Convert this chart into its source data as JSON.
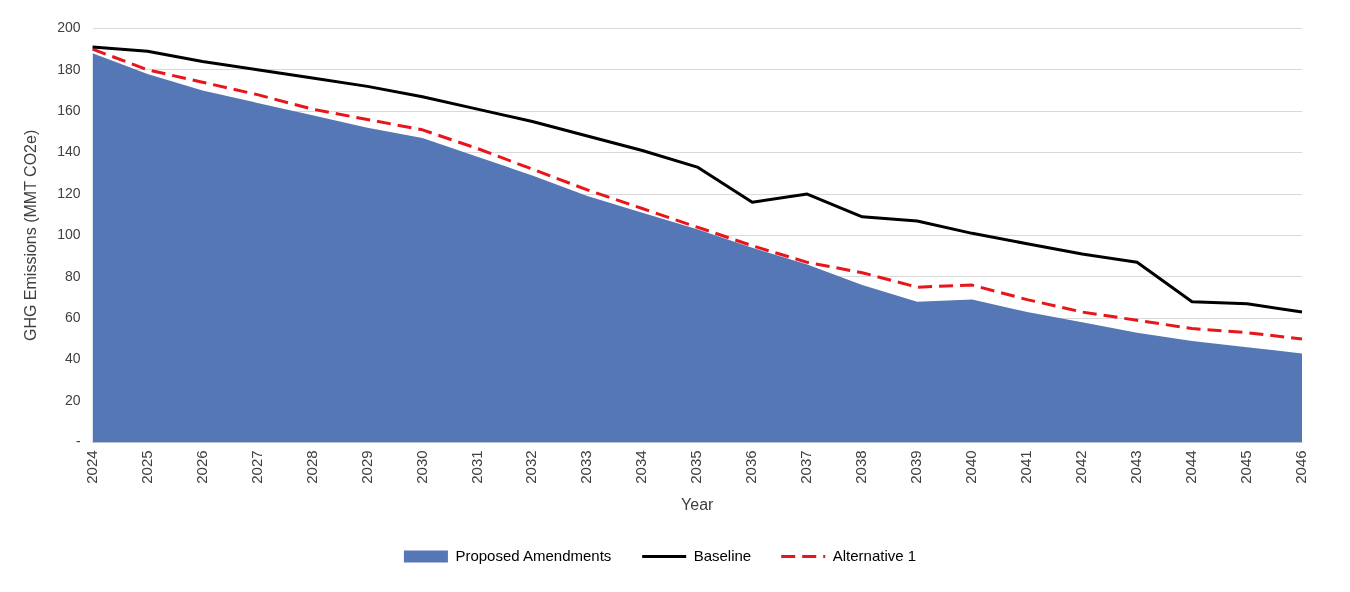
{
  "chart_data": {
    "type": "line",
    "xlabel": "Year",
    "ylabel": "GHG Emissions (MMT CO2e)",
    "categories": [
      "2024",
      "2025",
      "2026",
      "2027",
      "2028",
      "2029",
      "2030",
      "2031",
      "2032",
      "2033",
      "2034",
      "2035",
      "2036",
      "2037",
      "2038",
      "2039",
      "2040",
      "2041",
      "2042",
      "2043",
      "2044",
      "2045",
      "2046"
    ],
    "series": [
      {
        "name": "Proposed Amendments",
        "type": "area",
        "color": "#5577b5",
        "values": [
          188,
          178,
          170,
          164,
          158,
          152,
          147,
          138,
          129,
          119,
          111,
          103,
          94,
          86,
          76,
          68,
          69,
          63,
          58,
          53,
          49,
          46,
          43
        ]
      },
      {
        "name": "Baseline",
        "type": "line",
        "color": "#000000",
        "line_style": "solid",
        "values": [
          191,
          189,
          184,
          180,
          176,
          172,
          167,
          161,
          155,
          148,
          141,
          133,
          116,
          120,
          109,
          107,
          101,
          96,
          91,
          87,
          68,
          67,
          63
        ]
      },
      {
        "name": "Alternative 1",
        "type": "line",
        "color": "#e8151b",
        "line_style": "dashed",
        "values": [
          190,
          180,
          174,
          168,
          161,
          156,
          151,
          142,
          132,
          122,
          113,
          104,
          95,
          87,
          82,
          75,
          76,
          69,
          63,
          59,
          55,
          53,
          50
        ]
      }
    ],
    "ylim": [
      0,
      200
    ],
    "yticks": [
      {
        "value": 0,
        "label": "-"
      },
      20,
      40,
      60,
      80,
      100,
      120,
      140,
      160,
      180,
      200
    ],
    "grid": "y",
    "legend": "bottom",
    "marker": "none"
  }
}
